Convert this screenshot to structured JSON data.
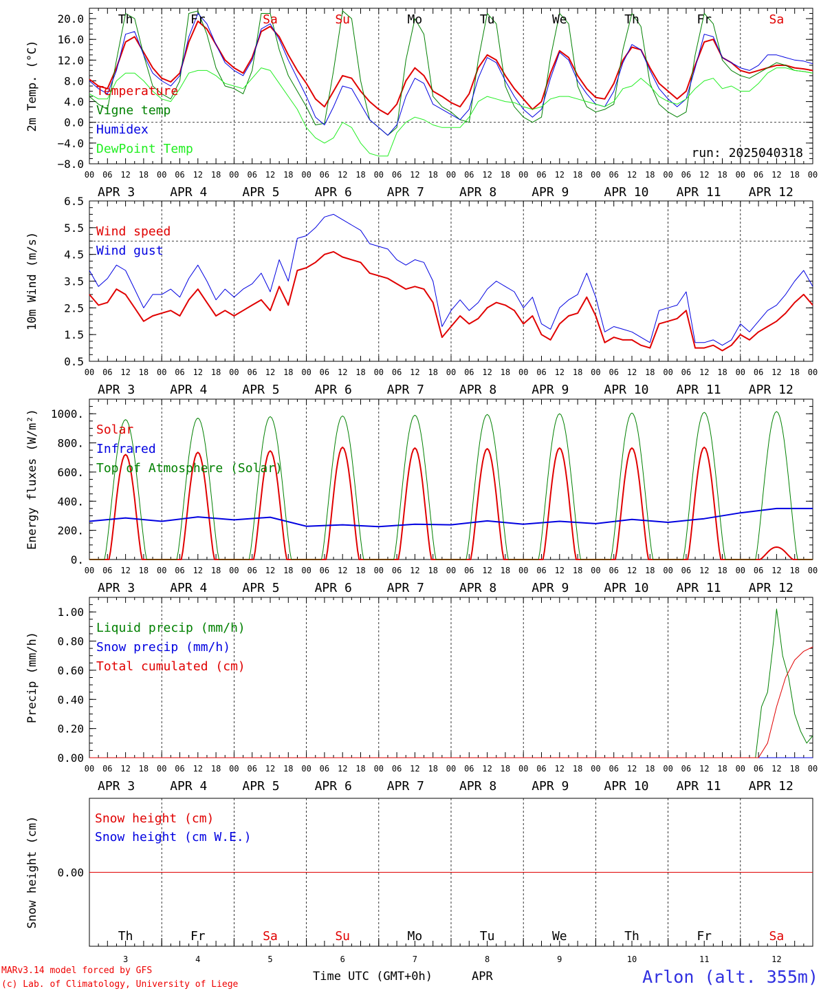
{
  "station": "Arlon (alt. 355m)",
  "run_label": "run: 2025040318",
  "footer": {
    "line1": "MARv3.14 model forced by GFS",
    "line2": "(c) Lab. of Climatology, University of Liege"
  },
  "xaxis_title": "Time UTC (GMT+0h)",
  "month_label": "APR",
  "hour_ticks": [
    "00",
    "06",
    "12",
    "18"
  ],
  "days": [
    {
      "name": "Th",
      "num": "3",
      "date": "APR  3",
      "color": "#000000"
    },
    {
      "name": "Fr",
      "num": "4",
      "date": "APR  4",
      "color": "#000000"
    },
    {
      "name": "Sa",
      "num": "5",
      "date": "APR  5",
      "color": "#e00000"
    },
    {
      "name": "Su",
      "num": "6",
      "date": "APR  6",
      "color": "#e00000"
    },
    {
      "name": "Mo",
      "num": "7",
      "date": "APR  7",
      "color": "#000000"
    },
    {
      "name": "Tu",
      "num": "8",
      "date": "APR  8",
      "color": "#000000"
    },
    {
      "name": "We",
      "num": "9",
      "date": "APR  9",
      "color": "#000000"
    },
    {
      "name": "Th",
      "num": "10",
      "date": "APR 10",
      "color": "#000000"
    },
    {
      "name": "Fr",
      "num": "11",
      "date": "APR 11",
      "color": "#000000"
    },
    {
      "name": "Sa",
      "num": "12",
      "date": "APR 12",
      "color": "#e00000"
    }
  ],
  "chart_data": [
    {
      "type": "line",
      "ylabel": "2m Temp. (°C)",
      "ylim": [
        -8,
        22
      ],
      "yticks": [
        "20.0",
        "16.0",
        "12.0",
        "8.0",
        "4.0",
        "0.0",
        "−4.0",
        "−8.0"
      ],
      "ytick_values": [
        20,
        16,
        12,
        8,
        4,
        0,
        -4,
        -8
      ],
      "x_hours": [
        0,
        3,
        6,
        9,
        12,
        15,
        18,
        21,
        24,
        27,
        30,
        33,
        36,
        39,
        42,
        45,
        48,
        51,
        54,
        57,
        60,
        63,
        66,
        69,
        72,
        75,
        78,
        81,
        84,
        87,
        90,
        93,
        96,
        99,
        102,
        105,
        108,
        111,
        114,
        117,
        120,
        123,
        126,
        129,
        132,
        135,
        138,
        141,
        144,
        147,
        150,
        153,
        156,
        159,
        162,
        165,
        168,
        171,
        174,
        177,
        180,
        183,
        186,
        189,
        192,
        195,
        198,
        201,
        204,
        207,
        210,
        213,
        216,
        219,
        222,
        225,
        228,
        231,
        234,
        237,
        240
      ],
      "series": [
        {
          "name": "Temperature",
          "color": "#e00000",
          "width": 2,
          "values": [
            8.3,
            7.0,
            6.5,
            10.5,
            15.5,
            16.5,
            13.5,
            10.5,
            8.5,
            7.8,
            9.5,
            15.5,
            19.5,
            18.0,
            15.0,
            12.0,
            10.5,
            9.5,
            12.5,
            17.5,
            18.5,
            16.5,
            13.0,
            10.0,
            7.5,
            4.5,
            3.0,
            6.0,
            9.0,
            8.5,
            6.0,
            4.0,
            2.5,
            1.5,
            3.5,
            8.0,
            10.5,
            9.0,
            6.0,
            5.0,
            3.8,
            3.0,
            5.5,
            10.5,
            13.0,
            12.0,
            9.0,
            6.5,
            4.5,
            2.5,
            4.0,
            9.5,
            13.8,
            12.5,
            9.0,
            6.5,
            4.8,
            4.5,
            7.5,
            12.0,
            14.5,
            14.0,
            10.5,
            7.5,
            6.0,
            4.5,
            6.0,
            11.0,
            15.5,
            16.0,
            12.5,
            11.5,
            10.0,
            9.5,
            10.0,
            10.5,
            11.0,
            11.0,
            10.5,
            10.3,
            10.0
          ]
        },
        {
          "name": "Vigne temp",
          "color": "#008000",
          "width": 1,
          "values": [
            5.0,
            3.5,
            2.5,
            12.0,
            21.0,
            20.0,
            13.0,
            7.0,
            5.5,
            4.5,
            8.0,
            21.0,
            21.5,
            17.0,
            10.5,
            7.0,
            6.5,
            5.5,
            10.0,
            21.0,
            21.0,
            14.0,
            9.0,
            6.0,
            3.0,
            -0.5,
            -0.2,
            10.0,
            21.5,
            20.0,
            8.0,
            0.5,
            -1.0,
            -2.5,
            -1.0,
            12.0,
            20.0,
            17.0,
            5.0,
            3.0,
            2.0,
            0.5,
            0.0,
            12.0,
            21.0,
            19.0,
            7.0,
            3.0,
            1.0,
            0.0,
            1.0,
            12.5,
            21.0,
            19.0,
            7.0,
            3.0,
            2.0,
            2.5,
            3.5,
            14.0,
            21.0,
            18.5,
            7.5,
            3.5,
            2.0,
            1.0,
            2.0,
            13.0,
            21.0,
            19.0,
            12.0,
            10.0,
            9.0,
            8.5,
            9.5,
            10.5,
            11.5,
            11.0,
            10.0,
            9.8,
            9.5
          ]
        },
        {
          "name": "Humidex",
          "color": "#0000e0",
          "width": 1,
          "values": [
            8.0,
            6.5,
            5.5,
            10.0,
            17.0,
            17.5,
            13.0,
            9.5,
            8.0,
            7.0,
            9.0,
            16.5,
            21.0,
            19.0,
            15.0,
            11.5,
            10.0,
            9.0,
            12.0,
            18.0,
            19.0,
            16.0,
            12.0,
            8.5,
            5.0,
            1.0,
            -0.5,
            3.0,
            7.0,
            6.5,
            3.5,
            0.5,
            -1.0,
            -2.5,
            -0.5,
            5.0,
            8.5,
            7.5,
            3.5,
            2.5,
            1.5,
            0.5,
            2.5,
            8.5,
            12.5,
            11.5,
            8.0,
            5.0,
            2.5,
            1.0,
            2.5,
            8.5,
            13.5,
            12.0,
            8.0,
            5.5,
            3.5,
            3.0,
            6.0,
            11.5,
            15.0,
            14.0,
            10.0,
            6.5,
            4.5,
            3.0,
            4.5,
            10.5,
            17.0,
            16.5,
            12.5,
            11.5,
            10.5,
            10.0,
            11.0,
            13.0,
            13.0,
            12.5,
            12.0,
            11.8,
            11.3
          ]
        },
        {
          "name": "DewPoint Temp",
          "color": "#22ee22",
          "width": 1,
          "values": [
            5.5,
            4.5,
            4.5,
            8.0,
            9.5,
            9.5,
            8.0,
            6.0,
            4.5,
            4.0,
            6.5,
            9.5,
            10.0,
            10.0,
            9.0,
            7.5,
            7.0,
            6.5,
            8.5,
            10.5,
            10.0,
            7.5,
            5.0,
            2.5,
            -1.0,
            -3.0,
            -4.0,
            -3.0,
            0.0,
            -1.0,
            -4.0,
            -6.0,
            -6.5,
            -6.5,
            -2.0,
            0.0,
            1.0,
            0.5,
            -0.5,
            -1.0,
            -1.0,
            -1.0,
            1.0,
            4.0,
            5.0,
            4.5,
            4.0,
            3.8,
            3.0,
            2.5,
            3.0,
            4.5,
            5.0,
            5.0,
            4.5,
            4.0,
            3.5,
            3.0,
            4.0,
            6.5,
            7.0,
            8.5,
            7.0,
            5.0,
            4.0,
            3.5,
            4.5,
            6.5,
            8.0,
            8.5,
            6.5,
            7.0,
            6.0,
            6.0,
            7.5,
            9.5,
            10.5,
            10.5,
            10.0,
            9.8,
            9.5
          ]
        }
      ],
      "legend": [
        "Temperature",
        "Vigne temp",
        "Humidex",
        "DewPoint Temp"
      ],
      "reference_line": 0
    },
    {
      "type": "line",
      "ylabel": "10m Wind (m/s)",
      "ylim": [
        0.5,
        6.5
      ],
      "yticks": [
        "6.5",
        "5.5",
        "4.5",
        "3.5",
        "2.5",
        "1.5",
        "0.5"
      ],
      "ytick_values": [
        6.5,
        5.5,
        4.5,
        3.5,
        2.5,
        1.5,
        0.5
      ],
      "x_hours": [
        0,
        3,
        6,
        9,
        12,
        15,
        18,
        21,
        24,
        27,
        30,
        33,
        36,
        39,
        42,
        45,
        48,
        51,
        54,
        57,
        60,
        63,
        66,
        69,
        72,
        75,
        78,
        81,
        84,
        87,
        90,
        93,
        96,
        99,
        102,
        105,
        108,
        111,
        114,
        117,
        120,
        123,
        126,
        129,
        132,
        135,
        138,
        141,
        144,
        147,
        150,
        153,
        156,
        159,
        162,
        165,
        168,
        171,
        174,
        177,
        180,
        183,
        186,
        189,
        192,
        195,
        198,
        201,
        204,
        207,
        210,
        213,
        216,
        219,
        222,
        225,
        228,
        231,
        234,
        237,
        240
      ],
      "series": [
        {
          "name": "Wind speed",
          "color": "#e00000",
          "width": 2,
          "values": [
            3.0,
            2.6,
            2.7,
            3.2,
            3.0,
            2.5,
            2.0,
            2.2,
            2.3,
            2.4,
            2.2,
            2.8,
            3.2,
            2.7,
            2.2,
            2.4,
            2.2,
            2.4,
            2.6,
            2.8,
            2.4,
            3.3,
            2.6,
            3.9,
            4.0,
            4.2,
            4.5,
            4.6,
            4.4,
            4.3,
            4.2,
            3.8,
            3.7,
            3.6,
            3.4,
            3.2,
            3.3,
            3.2,
            2.7,
            1.4,
            1.8,
            2.2,
            1.9,
            2.1,
            2.5,
            2.7,
            2.6,
            2.4,
            1.9,
            2.2,
            1.5,
            1.3,
            1.9,
            2.2,
            2.3,
            2.9,
            2.2,
            1.2,
            1.4,
            1.3,
            1.3,
            1.1,
            1.0,
            1.9,
            2.0,
            2.1,
            2.4,
            1.0,
            1.0,
            1.1,
            0.9,
            1.1,
            1.5,
            1.3,
            1.6,
            1.8,
            2.0,
            2.3,
            2.7,
            3.0,
            2.6
          ]
        },
        {
          "name": "Wind gust",
          "color": "#0000e0",
          "width": 1,
          "values": [
            3.9,
            3.3,
            3.6,
            4.1,
            3.9,
            3.2,
            2.5,
            3.0,
            3.0,
            3.2,
            2.9,
            3.6,
            4.1,
            3.5,
            2.8,
            3.2,
            2.9,
            3.2,
            3.4,
            3.8,
            3.1,
            4.3,
            3.5,
            5.1,
            5.2,
            5.5,
            5.9,
            6.0,
            5.8,
            5.6,
            5.4,
            4.9,
            4.8,
            4.7,
            4.3,
            4.1,
            4.3,
            4.2,
            3.5,
            1.8,
            2.4,
            2.8,
            2.4,
            2.7,
            3.2,
            3.5,
            3.3,
            3.1,
            2.5,
            2.9,
            1.9,
            1.7,
            2.5,
            2.8,
            3.0,
            3.8,
            2.9,
            1.6,
            1.8,
            1.7,
            1.6,
            1.4,
            1.2,
            2.4,
            2.5,
            2.6,
            3.1,
            1.2,
            1.2,
            1.3,
            1.1,
            1.3,
            1.9,
            1.6,
            2.0,
            2.4,
            2.6,
            3.0,
            3.5,
            3.9,
            3.3
          ]
        }
      ],
      "legend": [
        "Wind speed",
        "Wind gust"
      ],
      "reference_line": 5
    },
    {
      "type": "line",
      "ylabel": "Energy fluxes (W/m²)",
      "ylim": [
        0,
        1100
      ],
      "yticks": [
        "1000.",
        "800.",
        "600.",
        "400.",
        "200.",
        "0."
      ],
      "ytick_values": [
        1000,
        800,
        600,
        400,
        200,
        0
      ],
      "series": [
        {
          "name": "Solar",
          "color": "#e00000",
          "width": 2,
          "kind": "daily_peaks",
          "peaks": [
            720,
            735,
            745,
            770,
            765,
            760,
            765,
            765,
            770,
            85
          ]
        },
        {
          "name": "Infrared",
          "color": "#0000e0",
          "width": 2,
          "x_hours": [
            0,
            12,
            24,
            36,
            48,
            60,
            72,
            84,
            96,
            108,
            120,
            132,
            144,
            156,
            168,
            180,
            192,
            204,
            216,
            228,
            240
          ],
          "values": [
            262,
            285,
            262,
            292,
            272,
            290,
            228,
            238,
            225,
            242,
            238,
            265,
            242,
            262,
            246,
            275,
            255,
            280,
            320,
            350,
            350
          ]
        },
        {
          "name": "Top of Atmosphere (Solar)",
          "color": "#008000",
          "width": 1,
          "kind": "daily_peaks",
          "peaks": [
            960,
            970,
            980,
            985,
            990,
            995,
            1000,
            1005,
            1010,
            1015
          ]
        }
      ],
      "legend": [
        "Solar",
        "Infrared",
        "Top of Atmosphere (Solar)"
      ]
    },
    {
      "type": "line",
      "ylabel": "Precip (mm/h)",
      "ylim": [
        0,
        1.1
      ],
      "yticks": [
        "1.00",
        "0.80",
        "0.60",
        "0.40",
        "0.20",
        "0.00"
      ],
      "ytick_values": [
        1,
        0.8,
        0.6,
        0.4,
        0.2,
        0
      ],
      "series": [
        {
          "name": "Liquid precip (mm/h)",
          "color": "#008000",
          "width": 1,
          "x_hours": [
            0,
            216,
            221,
            223,
            225,
            227,
            228,
            230,
            232,
            234,
            236,
            238,
            240
          ],
          "values": [
            0,
            0,
            0,
            0.35,
            0.45,
            0.8,
            1.02,
            0.7,
            0.55,
            0.3,
            0.18,
            0.1,
            0.15
          ]
        },
        {
          "name": "Snow precip (mm/h)",
          "color": "#0000e0",
          "width": 1,
          "x_hours": [
            0,
            240
          ],
          "values": [
            0,
            0
          ]
        },
        {
          "name": "Total cumulated (cm)",
          "color": "#e00000",
          "width": 1,
          "x_hours": [
            0,
            222,
            225,
            228,
            231,
            234,
            237,
            240
          ],
          "values": [
            0,
            0,
            0.1,
            0.35,
            0.55,
            0.67,
            0.73,
            0.76
          ]
        }
      ],
      "legend": [
        "Liquid precip (mm/h)",
        "Snow precip (mm/h)",
        "Total cumulated (cm)"
      ]
    },
    {
      "type": "line",
      "ylabel": "Snow height (cm)",
      "yticks": [
        "0.00"
      ],
      "ytick_values": [
        0
      ],
      "series": [
        {
          "name": "Snow height (cm)",
          "color": "#e00000",
          "width": 1,
          "x_hours": [
            0,
            240
          ],
          "values": [
            0,
            0
          ]
        },
        {
          "name": "Snow height (cm W.E.)",
          "color": "#0000e0",
          "width": 1,
          "x_hours": [
            0,
            240
          ],
          "values": [
            0,
            0
          ]
        }
      ],
      "legend": [
        "Snow height (cm)",
        "Snow height (cm W.E.)"
      ]
    }
  ]
}
